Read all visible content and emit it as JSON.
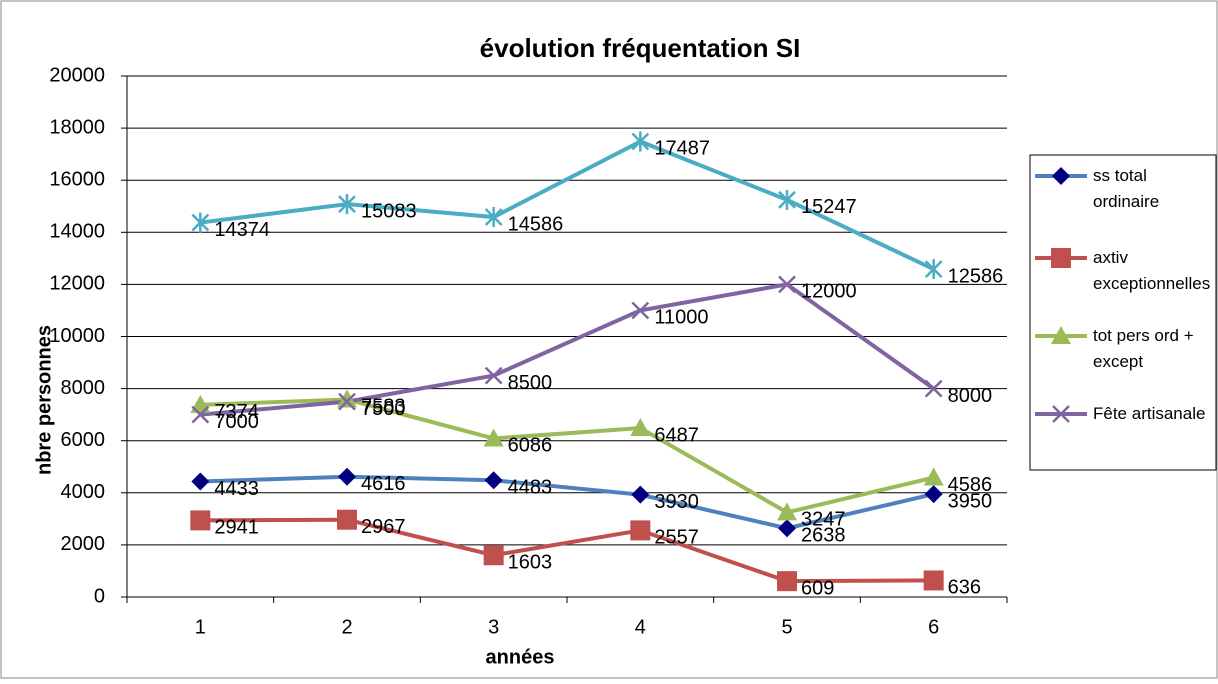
{
  "chart_data": {
    "type": "line",
    "title": "évolution fréquentation SI",
    "x_label": "années",
    "y_label": "nbre personnes",
    "categories": [
      "1",
      "2",
      "3",
      "4",
      "5",
      "6"
    ],
    "series": [
      {
        "name": "ss total ordinaire",
        "color": "#4f81bd",
        "marker_color": "#000080",
        "marker": "diamond",
        "values": [
          4433,
          4616,
          4483,
          3930,
          2638,
          3950
        ]
      },
      {
        "name": "axtiv exceptionnelles",
        "color": "#c0504d",
        "marker": "square",
        "values": [
          2941,
          2967,
          1603,
          2557,
          609,
          636
        ]
      },
      {
        "name": "tot pers ord + except",
        "color": "#9bbb59",
        "marker": "triangle",
        "values": [
          7374,
          7583,
          6086,
          6487,
          3247,
          4586
        ]
      },
      {
        "name": "Fête artisanale",
        "color": "#8064a2",
        "marker": "x",
        "values": [
          7000,
          7500,
          8500,
          11000,
          12000,
          8000
        ]
      },
      {
        "color": "#4bacc6",
        "marker": "star",
        "values": [
          14374,
          15083,
          14586,
          17487,
          15247,
          12586
        ]
      }
    ],
    "ylim": [
      0,
      20000
    ],
    "yticks": [
      0,
      2000,
      4000,
      6000,
      8000,
      10000,
      12000,
      14000,
      16000,
      18000,
      20000
    ],
    "grid": true,
    "legend": "right"
  }
}
